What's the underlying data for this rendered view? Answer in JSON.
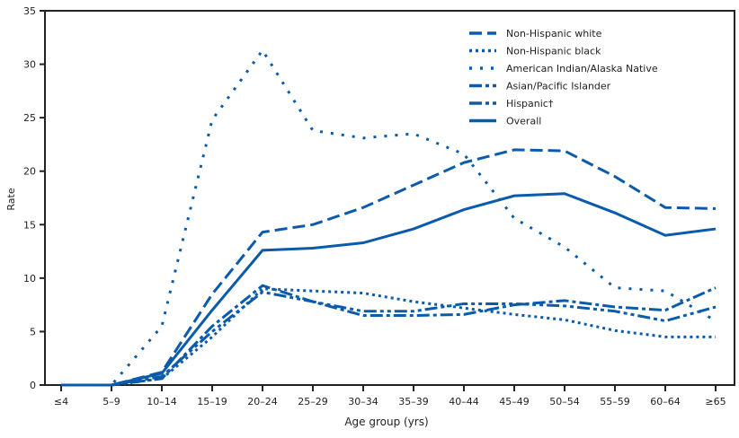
{
  "chart_data": {
    "type": "line",
    "title": "",
    "xlabel": "Age group (yrs)",
    "ylabel": "Rate",
    "ylim": [
      0,
      35
    ],
    "yticks": [
      0,
      5,
      10,
      15,
      20,
      25,
      30,
      35
    ],
    "grid": false,
    "legend_position": "top-right",
    "color": "#0a5bab",
    "categories": [
      "≤4",
      "5–9",
      "10–14",
      "15–19",
      "20–24",
      "25–29",
      "30–34",
      "35–39",
      "40–44",
      "45–49",
      "50–54",
      "55–59",
      "60–64",
      "≥65"
    ],
    "series": [
      {
        "name": "Non-Hispanic white",
        "dash": "14 6",
        "values": [
          0,
          0,
          1.2,
          8.5,
          14.3,
          15.0,
          16.6,
          18.7,
          20.8,
          22.0,
          21.9,
          19.5,
          16.6,
          16.5
        ]
      },
      {
        "name": "Non-Hispanic black",
        "dash": "3 4",
        "values": [
          0,
          0,
          0.6,
          4.5,
          9.0,
          8.8,
          8.6,
          7.8,
          7.2,
          6.6,
          6.1,
          5.1,
          4.5,
          4.5
        ]
      },
      {
        "name": "American Indian/Alaska Native",
        "dash": "3 9",
        "values": [
          0,
          0,
          5.5,
          24.8,
          31.3,
          23.8,
          23.1,
          23.5,
          21.6,
          15.6,
          12.9,
          9.1,
          8.8,
          6.0
        ]
      },
      {
        "name": "Asian/Pacific Islander",
        "dash": "14 4 4 4",
        "values": [
          0,
          0,
          0.6,
          5.5,
          9.3,
          7.8,
          6.5,
          6.5,
          6.6,
          7.5,
          7.9,
          7.3,
          7.0,
          9.1
        ]
      },
      {
        "name": "Hispanic†",
        "dash": "14 4 4 4 4 4",
        "values": [
          0,
          0,
          0.8,
          5.0,
          8.7,
          7.8,
          6.9,
          6.9,
          7.6,
          7.6,
          7.4,
          6.9,
          6.0,
          7.3
        ]
      },
      {
        "name": "Overall",
        "dash": "",
        "values": [
          0,
          0,
          1.1,
          7.0,
          12.6,
          12.8,
          13.3,
          14.6,
          16.4,
          17.7,
          17.9,
          16.1,
          14.0,
          14.6
        ]
      }
    ]
  }
}
